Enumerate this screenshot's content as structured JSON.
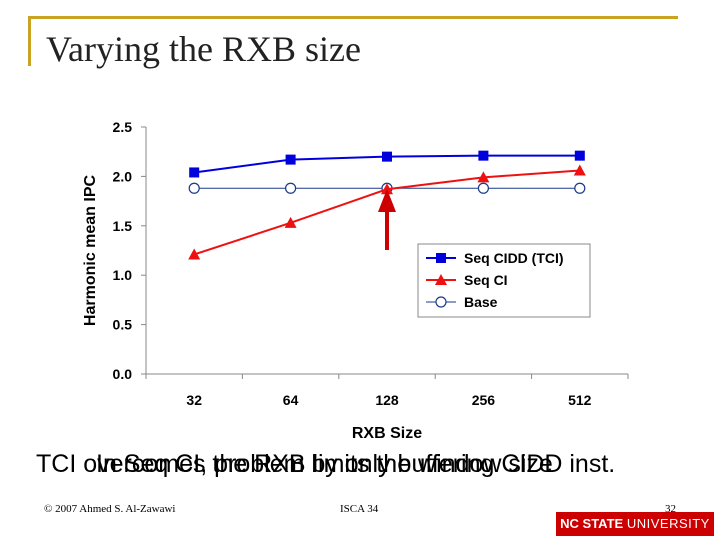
{
  "slide": {
    "title": "Varying the RXB size",
    "caption_lines": [
      "TCI overcomes the RXB limits the window size",
      "In Seq CI, problem by only buffering CIDD inst."
    ],
    "footer_left": "© 2007 Ahmed S. Al-Zawawi",
    "footer_center": "ISCA 34",
    "footer_right": "32",
    "brand_bold": "NC STATE",
    "brand_regular": "UNIVERSITY"
  },
  "chart_data": {
    "type": "line",
    "title": "",
    "xlabel": "RXB Size",
    "ylabel": "Harmonic mean IPC",
    "categories": [
      "32",
      "64",
      "128",
      "256",
      "512"
    ],
    "ylim": [
      0.0,
      2.5
    ],
    "yticks": [
      "0.0",
      "0.5",
      "1.0",
      "1.5",
      "2.0",
      "2.5"
    ],
    "legend_position": "center-right",
    "series": [
      {
        "name": "Seq CIDD (TCI)",
        "values": [
          2.04,
          2.17,
          2.2,
          2.21,
          2.21
        ],
        "color": "#0000dd",
        "marker": "square"
      },
      {
        "name": "Seq CI",
        "values": [
          1.21,
          1.53,
          1.87,
          1.99,
          2.06
        ],
        "color": "#ee1111",
        "marker": "triangle"
      },
      {
        "name": "Base",
        "values": [
          1.88,
          1.88,
          1.88,
          1.88,
          1.88
        ],
        "color": "#1a3a8a",
        "marker": "circle"
      }
    ],
    "annotation": {
      "type": "arrow",
      "color": "#cc0000",
      "category": "128"
    }
  }
}
